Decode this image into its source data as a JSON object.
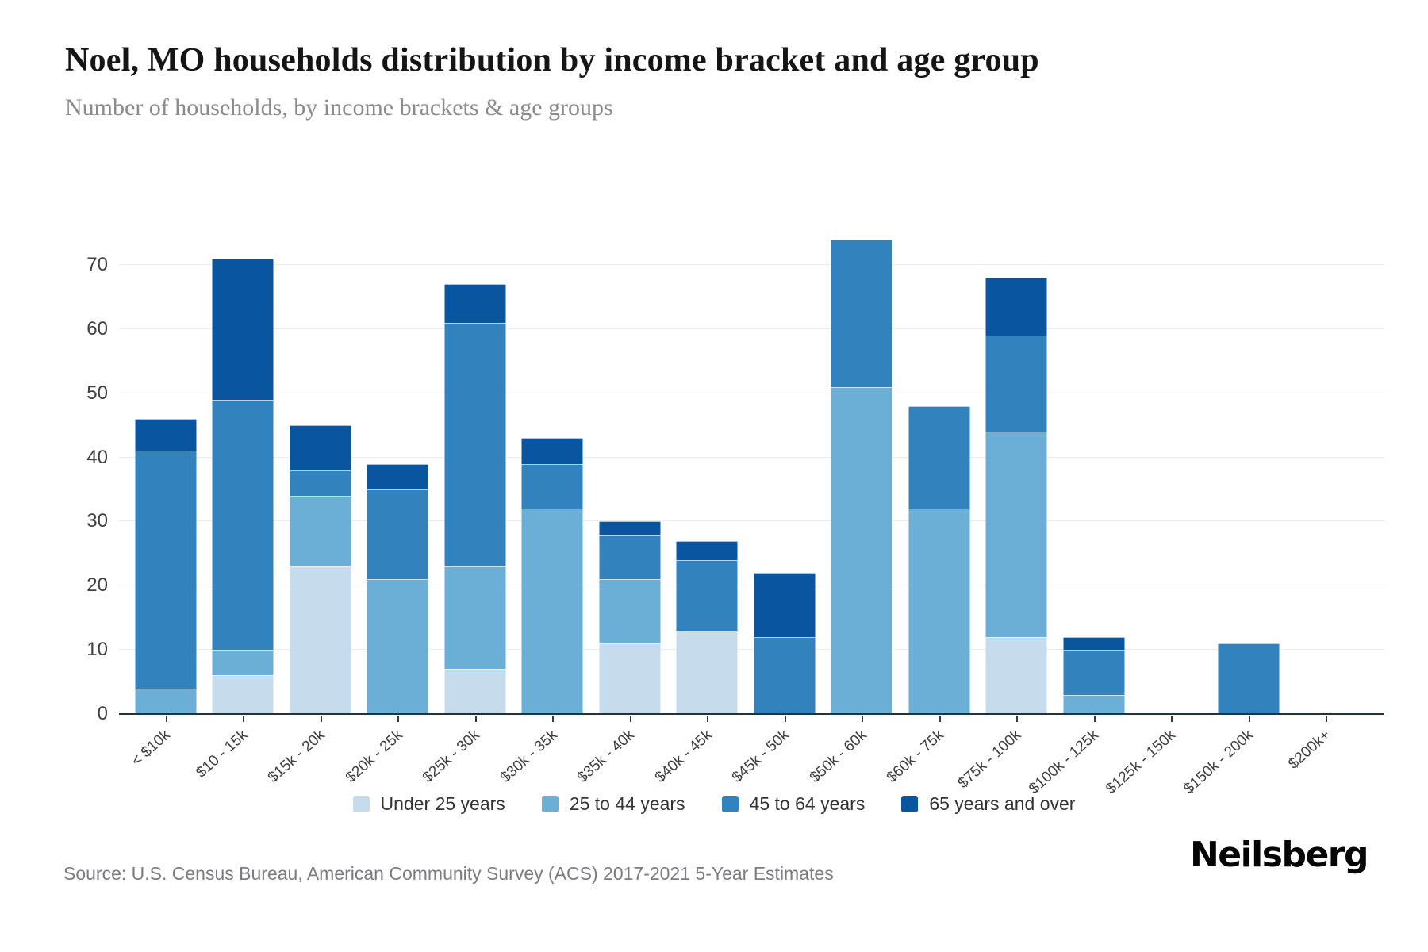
{
  "header": {
    "title": "Noel, MO households distribution by income bracket and age group",
    "subtitle": "Number of households, by income brackets & age groups"
  },
  "chart_data": {
    "type": "bar",
    "stacked": true,
    "title": "Noel, MO households distribution by income bracket and age group",
    "xlabel": "",
    "ylabel": "",
    "categories": [
      "< $10k",
      "$10 - 15k",
      "$15k - 20k",
      "$20k - 25k",
      "$25k - 30k",
      "$30k - 35k",
      "$35k - 40k",
      "$40k - 45k",
      "$45k - 50k",
      "$50k - 60k",
      "$60k - 75k",
      "$75k - 100k",
      "$100k - 125k",
      "$125k - 150k",
      "$150k - 200k",
      "$200k+"
    ],
    "series": [
      {
        "name": "Under 25 years",
        "color": "#c6dbeb",
        "values": [
          0,
          6,
          23,
          0,
          7,
          0,
          11,
          13,
          0,
          0,
          0,
          12,
          0,
          0,
          0,
          0
        ]
      },
      {
        "name": "25 to 44 years",
        "color": "#6baed6",
        "values": [
          4,
          4,
          11,
          21,
          16,
          32,
          10,
          0,
          0,
          51,
          32,
          32,
          3,
          0,
          0,
          0
        ]
      },
      {
        "name": "45 to 64 years",
        "color": "#3182bd",
        "values": [
          37,
          39,
          4,
          14,
          38,
          7,
          7,
          11,
          12,
          23,
          16,
          15,
          7,
          0,
          11,
          0
        ]
      },
      {
        "name": "65 years and over",
        "color": "#0a55a0",
        "values": [
          5,
          22,
          7,
          4,
          6,
          4,
          2,
          3,
          10,
          0,
          0,
          9,
          2,
          0,
          0,
          0
        ]
      }
    ],
    "totals": [
      46,
      71,
      45,
      39,
      67,
      43,
      30,
      27,
      22,
      74,
      48,
      68,
      12,
      0,
      11,
      0
    ],
    "yticks": [
      0,
      10,
      20,
      30,
      40,
      50,
      60,
      70
    ],
    "ylim": [
      0,
      74
    ],
    "grid": true,
    "legend_position": "bottom"
  },
  "footer": {
    "source": "Source: U.S. Census Bureau, American Community Survey (ACS) 2017-2021 5-Year Estimates",
    "brand": "Neilsberg"
  }
}
